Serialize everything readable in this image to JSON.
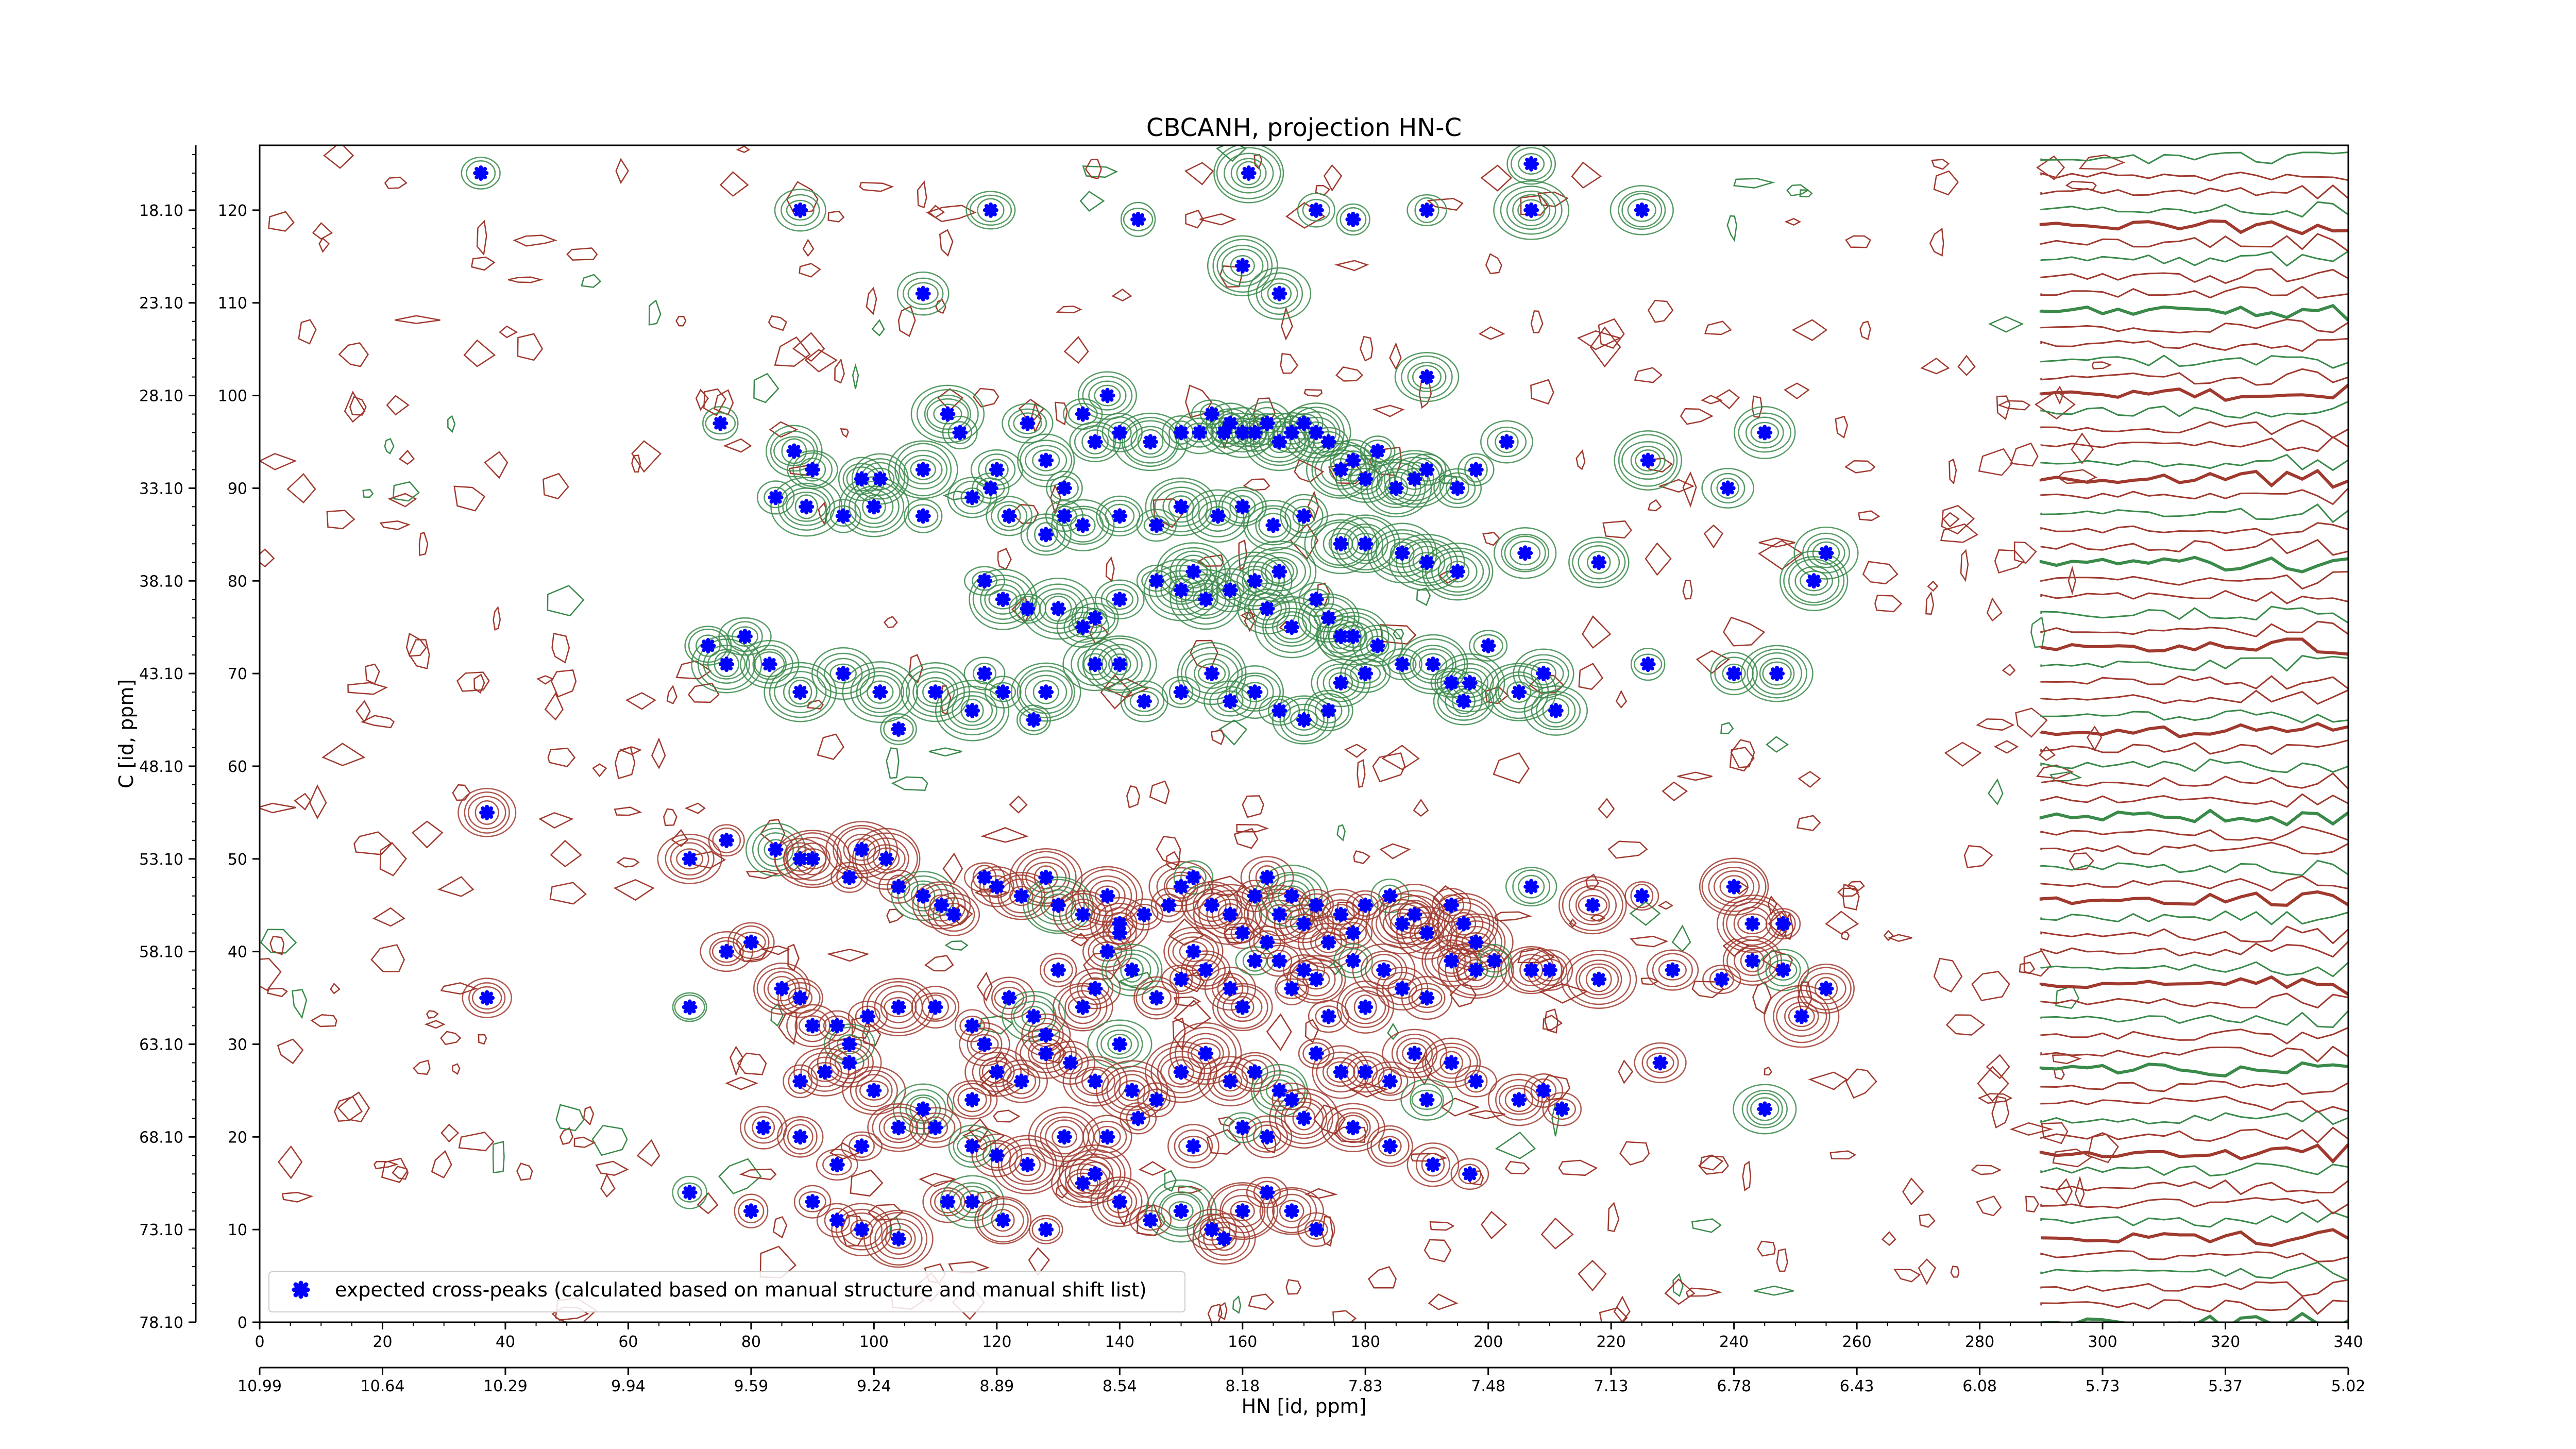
{
  "chart_data": {
    "type": "scatter",
    "title": "CBCANH, projection HN-C",
    "xlabel": "HN [id, ppm]",
    "ylabel": "C [id, ppm]",
    "xlim": [
      0,
      340
    ],
    "ylim": [
      0,
      127
    ],
    "x_ticks": [
      "0",
      "20",
      "40",
      "60",
      "80",
      "100",
      "120",
      "140",
      "160",
      "180",
      "200",
      "220",
      "240",
      "260",
      "280",
      "300",
      "320",
      "340"
    ],
    "x_ticks_secondary": [
      "10.99",
      "10.64",
      "10.29",
      "9.94",
      "9.59",
      "9.24",
      "8.89",
      "8.54",
      "8.18",
      "7.83",
      "7.48",
      "7.13",
      "6.78",
      "6.43",
      "6.08",
      "5.73",
      "5.37",
      "5.02"
    ],
    "y_ticks": [
      "0",
      "10",
      "20",
      "30",
      "40",
      "50",
      "60",
      "70",
      "80",
      "90",
      "100",
      "110",
      "120"
    ],
    "y_ticks_secondary": [
      "78.10",
      "73.10",
      "68.10",
      "63.10",
      "58.10",
      "53.10",
      "48.10",
      "43.10",
      "38.10",
      "33.10",
      "28.10",
      "23.10",
      "18.10"
    ],
    "legend": {
      "placement": "lower-left",
      "entries": [
        "expected cross-peaks (calculated based on manual structure and manual shift list)"
      ]
    },
    "colors": {
      "marker": "#0000ff",
      "contour_positive": "#a0392e",
      "contour_negative": "#3a8a4a"
    },
    "series": [
      {
        "name": "expected cross-peaks (calculated based on manual structure and manual shift list)",
        "points": [
          [
            36,
            124
          ],
          [
            88,
            120
          ],
          [
            108,
            111
          ],
          [
            119,
            120
          ],
          [
            143,
            119
          ],
          [
            161,
            124
          ],
          [
            172,
            120
          ],
          [
            178,
            119
          ],
          [
            190,
            120
          ],
          [
            207,
            125
          ],
          [
            207,
            120
          ],
          [
            225,
            120
          ],
          [
            160,
            114
          ],
          [
            166,
            111
          ],
          [
            75,
            97
          ],
          [
            87,
            94
          ],
          [
            90,
            92
          ],
          [
            98,
            91
          ],
          [
            101,
            91
          ],
          [
            108,
            92
          ],
          [
            112,
            98
          ],
          [
            114,
            96
          ],
          [
            119,
            90
          ],
          [
            120,
            92
          ],
          [
            125,
            97
          ],
          [
            128,
            93
          ],
          [
            131,
            90
          ],
          [
            131,
            87
          ],
          [
            134,
            98
          ],
          [
            136,
            95
          ],
          [
            138,
            100
          ],
          [
            140,
            96
          ],
          [
            145,
            95
          ],
          [
            150,
            96
          ],
          [
            153,
            96
          ],
          [
            155,
            98
          ],
          [
            157,
            96
          ],
          [
            158,
            97
          ],
          [
            160,
            96
          ],
          [
            162,
            96
          ],
          [
            164,
            97
          ],
          [
            166,
            95
          ],
          [
            168,
            96
          ],
          [
            170,
            97
          ],
          [
            172,
            96
          ],
          [
            174,
            95
          ],
          [
            176,
            92
          ],
          [
            178,
            93
          ],
          [
            180,
            91
          ],
          [
            182,
            94
          ],
          [
            185,
            90
          ],
          [
            188,
            91
          ],
          [
            190,
            92
          ],
          [
            195,
            90
          ],
          [
            198,
            92
          ],
          [
            203,
            95
          ],
          [
            190,
            102
          ],
          [
            245,
            96
          ],
          [
            239,
            90
          ],
          [
            226,
            93
          ],
          [
            84,
            89
          ],
          [
            89,
            88
          ],
          [
            95,
            87
          ],
          [
            100,
            88
          ],
          [
            108,
            87
          ],
          [
            116,
            89
          ],
          [
            122,
            87
          ],
          [
            128,
            85
          ],
          [
            134,
            86
          ],
          [
            140,
            87
          ],
          [
            146,
            86
          ],
          [
            150,
            88
          ],
          [
            156,
            87
          ],
          [
            160,
            88
          ],
          [
            165,
            86
          ],
          [
            170,
            87
          ],
          [
            176,
            84
          ],
          [
            180,
            84
          ],
          [
            186,
            83
          ],
          [
            190,
            82
          ],
          [
            195,
            81
          ],
          [
            206,
            83
          ],
          [
            218,
            82
          ],
          [
            255,
            83
          ],
          [
            253,
            80
          ],
          [
            118,
            80
          ],
          [
            121,
            78
          ],
          [
            125,
            77
          ],
          [
            130,
            77
          ],
          [
            134,
            75
          ],
          [
            136,
            76
          ],
          [
            140,
            78
          ],
          [
            146,
            80
          ],
          [
            150,
            79
          ],
          [
            152,
            81
          ],
          [
            154,
            78
          ],
          [
            158,
            79
          ],
          [
            162,
            80
          ],
          [
            164,
            77
          ],
          [
            166,
            81
          ],
          [
            168,
            75
          ],
          [
            172,
            78
          ],
          [
            174,
            76
          ],
          [
            176,
            74
          ],
          [
            178,
            74
          ],
          [
            182,
            73
          ],
          [
            186,
            71
          ],
          [
            191,
            71
          ],
          [
            194,
            69
          ],
          [
            197,
            69
          ],
          [
            200,
            73
          ],
          [
            209,
            70
          ],
          [
            226,
            71
          ],
          [
            240,
            70
          ],
          [
            247,
            70
          ],
          [
            73,
            73
          ],
          [
            76,
            71
          ],
          [
            79,
            74
          ],
          [
            83,
            71
          ],
          [
            88,
            68
          ],
          [
            95,
            70
          ],
          [
            101,
            68
          ],
          [
            104,
            64
          ],
          [
            110,
            68
          ],
          [
            116,
            66
          ],
          [
            118,
            70
          ],
          [
            121,
            68
          ],
          [
            126,
            65
          ],
          [
            128,
            68
          ],
          [
            136,
            71
          ],
          [
            140,
            71
          ],
          [
            144,
            67
          ],
          [
            150,
            68
          ],
          [
            155,
            70
          ],
          [
            158,
            67
          ],
          [
            162,
            68
          ],
          [
            166,
            66
          ],
          [
            170,
            65
          ],
          [
            174,
            66
          ],
          [
            176,
            69
          ],
          [
            180,
            70
          ],
          [
            196,
            67
          ],
          [
            205,
            68
          ],
          [
            211,
            66
          ],
          [
            37,
            55
          ],
          [
            70,
            50
          ],
          [
            76,
            52
          ],
          [
            84,
            51
          ],
          [
            88,
            50
          ],
          [
            90,
            50
          ],
          [
            96,
            48
          ],
          [
            98,
            51
          ],
          [
            102,
            50
          ],
          [
            104,
            47
          ],
          [
            108,
            46
          ],
          [
            111,
            45
          ],
          [
            113,
            44
          ],
          [
            118,
            48
          ],
          [
            120,
            47
          ],
          [
            124,
            46
          ],
          [
            128,
            48
          ],
          [
            130,
            45
          ],
          [
            134,
            44
          ],
          [
            138,
            46
          ],
          [
            140,
            43
          ],
          [
            144,
            44
          ],
          [
            148,
            45
          ],
          [
            150,
            47
          ],
          [
            152,
            48
          ],
          [
            155,
            45
          ],
          [
            158,
            44
          ],
          [
            160,
            42
          ],
          [
            162,
            46
          ],
          [
            164,
            48
          ],
          [
            166,
            44
          ],
          [
            168,
            46
          ],
          [
            170,
            43
          ],
          [
            172,
            45
          ],
          [
            174,
            41
          ],
          [
            176,
            44
          ],
          [
            178,
            42
          ],
          [
            180,
            45
          ],
          [
            184,
            46
          ],
          [
            186,
            43
          ],
          [
            188,
            44
          ],
          [
            190,
            42
          ],
          [
            194,
            45
          ],
          [
            196,
            43
          ],
          [
            198,
            41
          ],
          [
            207,
            47
          ],
          [
            217,
            45
          ],
          [
            225,
            46
          ],
          [
            240,
            47
          ],
          [
            243,
            43
          ],
          [
            248,
            43
          ],
          [
            37,
            35
          ],
          [
            70,
            34
          ],
          [
            76,
            40
          ],
          [
            80,
            41
          ],
          [
            85,
            36
          ],
          [
            88,
            35
          ],
          [
            90,
            32
          ],
          [
            94,
            32
          ],
          [
            96,
            30
          ],
          [
            99,
            33
          ],
          [
            104,
            34
          ],
          [
            110,
            34
          ],
          [
            116,
            32
          ],
          [
            118,
            30
          ],
          [
            122,
            35
          ],
          [
            126,
            33
          ],
          [
            128,
            31
          ],
          [
            130,
            38
          ],
          [
            134,
            34
          ],
          [
            136,
            36
          ],
          [
            138,
            40
          ],
          [
            140,
            42
          ],
          [
            142,
            38
          ],
          [
            146,
            35
          ],
          [
            150,
            37
          ],
          [
            152,
            40
          ],
          [
            154,
            38
          ],
          [
            158,
            36
          ],
          [
            160,
            34
          ],
          [
            162,
            39
          ],
          [
            164,
            41
          ],
          [
            166,
            39
          ],
          [
            168,
            36
          ],
          [
            170,
            38
          ],
          [
            172,
            37
          ],
          [
            174,
            33
          ],
          [
            178,
            39
          ],
          [
            180,
            34
          ],
          [
            183,
            38
          ],
          [
            186,
            36
          ],
          [
            190,
            35
          ],
          [
            194,
            39
          ],
          [
            198,
            38
          ],
          [
            201,
            39
          ],
          [
            207,
            38
          ],
          [
            210,
            38
          ],
          [
            218,
            37
          ],
          [
            230,
            38
          ],
          [
            238,
            37
          ],
          [
            243,
            39
          ],
          [
            248,
            38
          ],
          [
            255,
            36
          ],
          [
            251,
            33
          ],
          [
            88,
            26
          ],
          [
            92,
            27
          ],
          [
            96,
            28
          ],
          [
            100,
            25
          ],
          [
            108,
            23
          ],
          [
            116,
            24
          ],
          [
            120,
            27
          ],
          [
            124,
            26
          ],
          [
            128,
            29
          ],
          [
            132,
            28
          ],
          [
            136,
            26
          ],
          [
            140,
            30
          ],
          [
            142,
            25
          ],
          [
            146,
            24
          ],
          [
            150,
            27
          ],
          [
            154,
            29
          ],
          [
            158,
            26
          ],
          [
            162,
            27
          ],
          [
            166,
            25
          ],
          [
            168,
            24
          ],
          [
            172,
            29
          ],
          [
            176,
            27
          ],
          [
            180,
            27
          ],
          [
            184,
            26
          ],
          [
            188,
            29
          ],
          [
            190,
            24
          ],
          [
            194,
            28
          ],
          [
            198,
            26
          ],
          [
            205,
            24
          ],
          [
            209,
            25
          ],
          [
            212,
            23
          ],
          [
            228,
            28
          ],
          [
            245,
            23
          ],
          [
            82,
            21
          ],
          [
            88,
            20
          ],
          [
            94,
            17
          ],
          [
            98,
            19
          ],
          [
            104,
            21
          ],
          [
            110,
            21
          ],
          [
            116,
            19
          ],
          [
            120,
            18
          ],
          [
            125,
            17
          ],
          [
            131,
            20
          ],
          [
            138,
            20
          ],
          [
            143,
            22
          ],
          [
            152,
            19
          ],
          [
            160,
            21
          ],
          [
            164,
            20
          ],
          [
            170,
            22
          ],
          [
            178,
            21
          ],
          [
            184,
            19
          ],
          [
            191,
            17
          ],
          [
            197,
            16
          ],
          [
            70,
            14
          ],
          [
            80,
            12
          ],
          [
            90,
            13
          ],
          [
            94,
            11
          ],
          [
            98,
            10
          ],
          [
            104,
            9
          ],
          [
            112,
            13
          ],
          [
            116,
            13
          ],
          [
            121,
            11
          ],
          [
            128,
            10
          ],
          [
            134,
            15
          ],
          [
            136,
            16
          ],
          [
            140,
            13
          ],
          [
            145,
            11
          ],
          [
            150,
            12
          ],
          [
            155,
            10
          ],
          [
            157,
            9
          ],
          [
            160,
            12
          ],
          [
            164,
            14
          ],
          [
            168,
            12
          ],
          [
            172,
            10
          ]
        ]
      }
    ]
  }
}
